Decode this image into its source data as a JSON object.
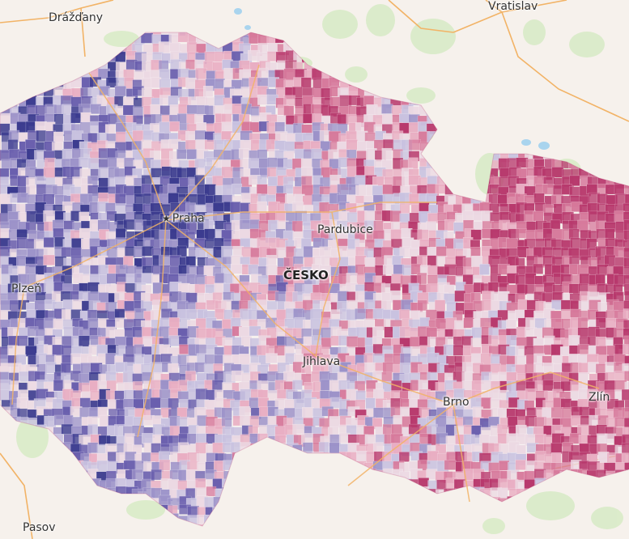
{
  "map": {
    "labels": {
      "drazdany": "Drážďany",
      "vratislav": "Vratislav",
      "praha": "Praha",
      "pardubice": "Pardubice",
      "cesko": "ČESKO",
      "plzen": "Plzeň",
      "jihlava": "Jihlava",
      "brno": "Brno",
      "zlin": "Zlín",
      "pasov": "Pasov"
    },
    "capital_marker": "★",
    "colors": {
      "background": "#f6f1ec",
      "forest": "#d9ebc8",
      "water": "#a9d4ee",
      "roads": "#f2b366",
      "choropleth_scale": [
        "#3b3b8f",
        "#6a5fae",
        "#9c92c9",
        "#c9c2e0",
        "#ecd9e3",
        "#e9aec3",
        "#d77a9c",
        "#b8396d"
      ]
    }
  }
}
